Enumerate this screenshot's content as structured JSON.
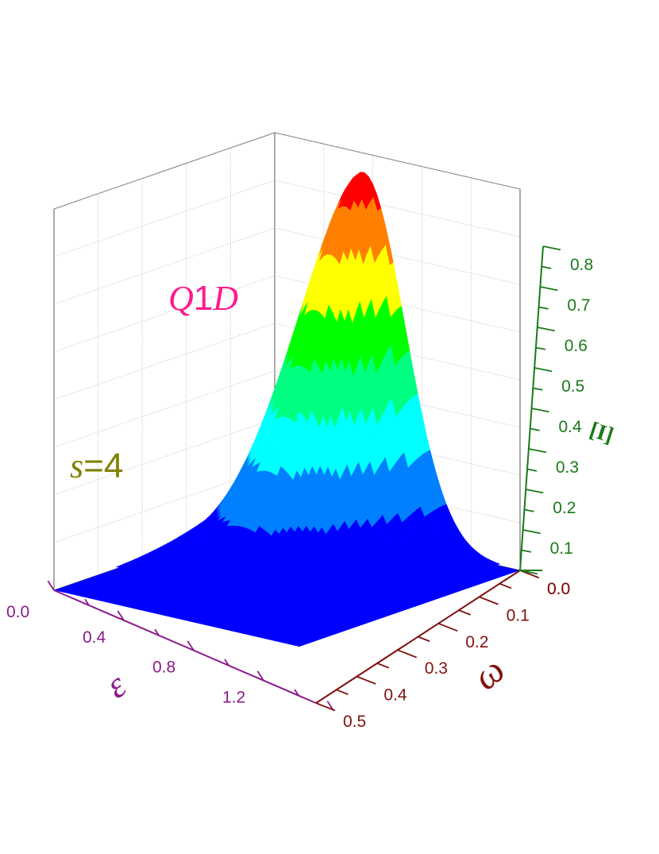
{
  "chart_data": {
    "type": "surface3d",
    "title": "",
    "annotations": {
      "regime_italic": "Q",
      "regime_digit": "1",
      "regime_suffix": "D",
      "param_name": "s",
      "param_rest": "=4"
    },
    "axes": {
      "e": {
        "label": "ɛ",
        "ticks": [
          "0.0",
          "0.4",
          "0.8",
          "1.2"
        ],
        "range": [
          0,
          1.5
        ],
        "color": "#8b1a8b"
      },
      "w": {
        "label": "ω",
        "ticks": [
          "0.0",
          "0.1",
          "0.2",
          "0.3",
          "0.4",
          "0.5"
        ],
        "range": [
          0,
          0.5
        ],
        "color": "#7f1010"
      },
      "I": {
        "label": "[I]",
        "ticks": [
          "0.0",
          "0.1",
          "0.2",
          "0.3",
          "0.4",
          "0.5",
          "0.6",
          "0.7",
          "0.8"
        ],
        "range": [
          0,
          0.8
        ],
        "color": "#1a7a1a"
      }
    },
    "peak": {
      "omega": 0.18,
      "epsilon": 0.05,
      "value": 0.76
    },
    "contour_levels": [
      0,
      0.1,
      0.2,
      0.3,
      0.4,
      0.5,
      0.6,
      0.7,
      0.8
    ],
    "contour_colors": [
      "#0000ff",
      "#0080ff",
      "#00ffff",
      "#00ff80",
      "#00ff00",
      "#ffff00",
      "#ff8000",
      "#ff0000"
    ],
    "grid": true
  }
}
